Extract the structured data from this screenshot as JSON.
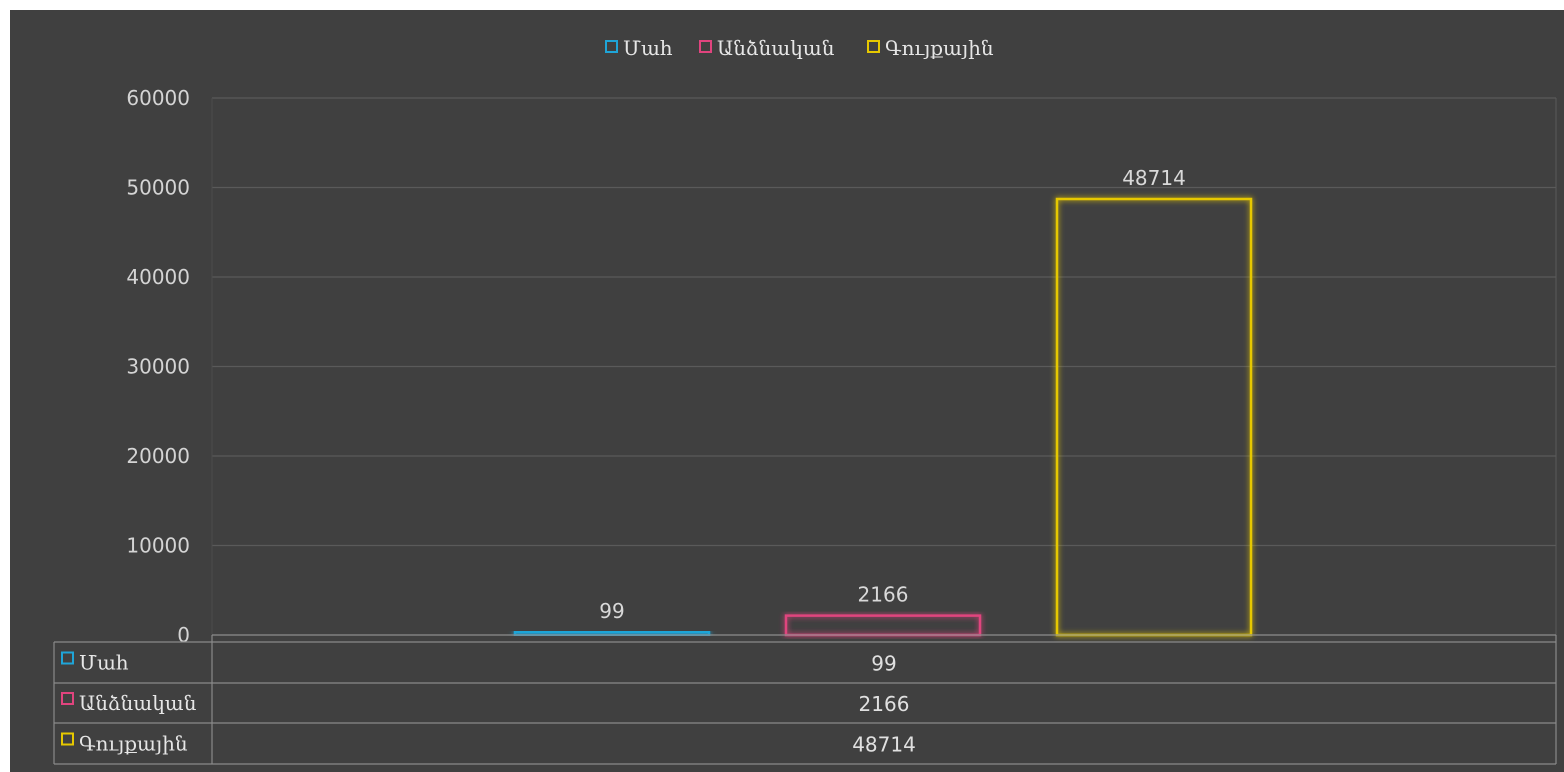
{
  "chart_data": {
    "type": "bar",
    "categories": [
      ""
    ],
    "series": [
      {
        "name": "Մահ",
        "values": [
          99
        ],
        "color": "#1fa5d8"
      },
      {
        "name": "Անձնական",
        "values": [
          2166
        ],
        "color": "#e0447e"
      },
      {
        "name": "Գույքային",
        "values": [
          48714
        ],
        "color": "#e6c800"
      }
    ],
    "yticks": [
      "0",
      "10000",
      "20000",
      "30000",
      "40000",
      "50000",
      "60000"
    ],
    "ylim": [
      0,
      60000
    ],
    "grid": true,
    "legend": "top-center",
    "data_table": true
  }
}
